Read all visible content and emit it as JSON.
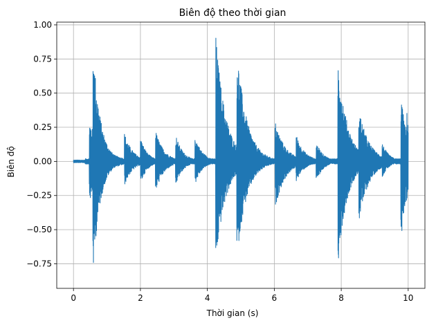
{
  "chart_data": {
    "type": "line",
    "title": "Biên độ theo thời gian",
    "xlabel": "Thời gian (s)",
    "ylabel": "Biên độ",
    "xlim": [
      -0.5,
      10.5
    ],
    "ylim": [
      -0.93,
      1.02
    ],
    "xticks": [
      0,
      2,
      4,
      6,
      8,
      10
    ],
    "xtick_labels": [
      "0",
      "2",
      "4",
      "6",
      "8",
      "10"
    ],
    "yticks": [
      -0.75,
      -0.5,
      -0.25,
      0.0,
      0.25,
      0.5,
      0.75,
      1.0
    ],
    "ytick_labels": [
      "−0.75",
      "−0.50",
      "−0.25",
      "0.00",
      "0.25",
      "0.50",
      "0.75",
      "1.00"
    ],
    "grid": true,
    "series_color": "#1f77b4",
    "duration_s": 10,
    "noise_floor": 0.02,
    "onsets": [
      {
        "t": 0.47,
        "peak_pos": 0.3,
        "peak_neg": 0.3,
        "decay": 0.4
      },
      {
        "t": 0.58,
        "peak_pos": 0.88,
        "peak_neg": 0.84,
        "decay": 0.22
      },
      {
        "t": 1.52,
        "peak_pos": 0.21,
        "peak_neg": 0.18,
        "decay": 0.25
      },
      {
        "t": 2.0,
        "peak_pos": 0.18,
        "peak_neg": 0.17,
        "decay": 0.2
      },
      {
        "t": 2.45,
        "peak_pos": 0.23,
        "peak_neg": 0.23,
        "decay": 0.25
      },
      {
        "t": 3.05,
        "peak_pos": 0.2,
        "peak_neg": 0.18,
        "decay": 0.22
      },
      {
        "t": 3.63,
        "peak_pos": 0.19,
        "peak_neg": 0.17,
        "decay": 0.22
      },
      {
        "t": 4.25,
        "peak_pos": 0.93,
        "peak_neg": 0.75,
        "decay": 0.3
      },
      {
        "t": 4.88,
        "peak_pos": 0.84,
        "peak_neg": 0.72,
        "decay": 0.3
      },
      {
        "t": 6.02,
        "peak_pos": 0.3,
        "peak_neg": 0.35,
        "decay": 0.3
      },
      {
        "t": 6.65,
        "peak_pos": 0.2,
        "peak_neg": 0.15,
        "decay": 0.25
      },
      {
        "t": 7.25,
        "peak_pos": 0.14,
        "peak_neg": 0.15,
        "decay": 0.22
      },
      {
        "t": 7.9,
        "peak_pos": 0.77,
        "peak_neg": 0.76,
        "decay": 0.28
      },
      {
        "t": 8.52,
        "peak_pos": 0.4,
        "peak_neg": 0.46,
        "decay": 0.3
      },
      {
        "t": 9.22,
        "peak_pos": 0.14,
        "peak_neg": 0.12,
        "decay": 0.2
      },
      {
        "t": 9.78,
        "peak_pos": 0.5,
        "peak_neg": 0.6,
        "decay": 0.2
      },
      {
        "t": 9.95,
        "peak_pos": 0.38,
        "peak_neg": 0.3,
        "decay": 0.2
      }
    ]
  }
}
